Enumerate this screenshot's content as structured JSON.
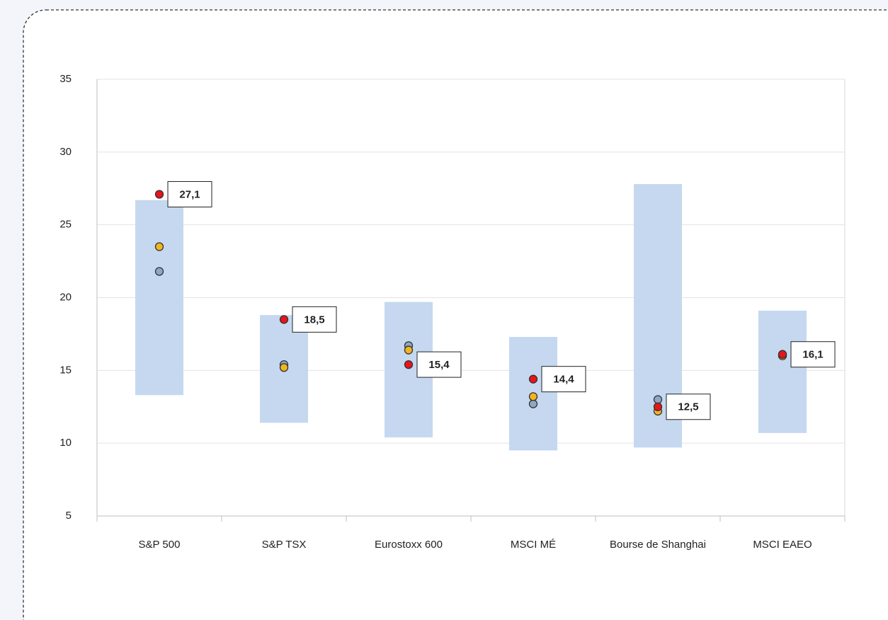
{
  "chart_data": {
    "type": "range",
    "categories": [
      "S&P 500",
      "S&P TSX",
      "Eurostoxx 600",
      "MSCI MÉ",
      "Bourse de Shanghai",
      "MSCI EAEO"
    ],
    "ranges": {
      "color": "#c5d8f0",
      "low": [
        13.3,
        11.4,
        10.4,
        9.5,
        9.7,
        10.7
      ],
      "high": [
        26.7,
        18.8,
        19.7,
        17.3,
        27.8,
        19.1
      ]
    },
    "series": [
      {
        "color": "#8ea7c4",
        "values": [
          21.8,
          15.4,
          16.7,
          12.7,
          13.0,
          16.1
        ]
      },
      {
        "color": "#f2b51f",
        "values": [
          23.5,
          15.2,
          16.4,
          13.2,
          12.2,
          16.0
        ]
      },
      {
        "color": "#e8141b",
        "values": [
          27.1,
          18.5,
          15.4,
          14.4,
          12.5,
          16.1
        ],
        "value_labels": [
          "27,1",
          "18,5",
          "15,4",
          "14,4",
          "12,5",
          "16,1"
        ]
      }
    ],
    "ylim": [
      5,
      35
    ],
    "yticks": [
      5,
      10,
      15,
      20,
      25,
      30,
      35
    ],
    "grid": true
  }
}
